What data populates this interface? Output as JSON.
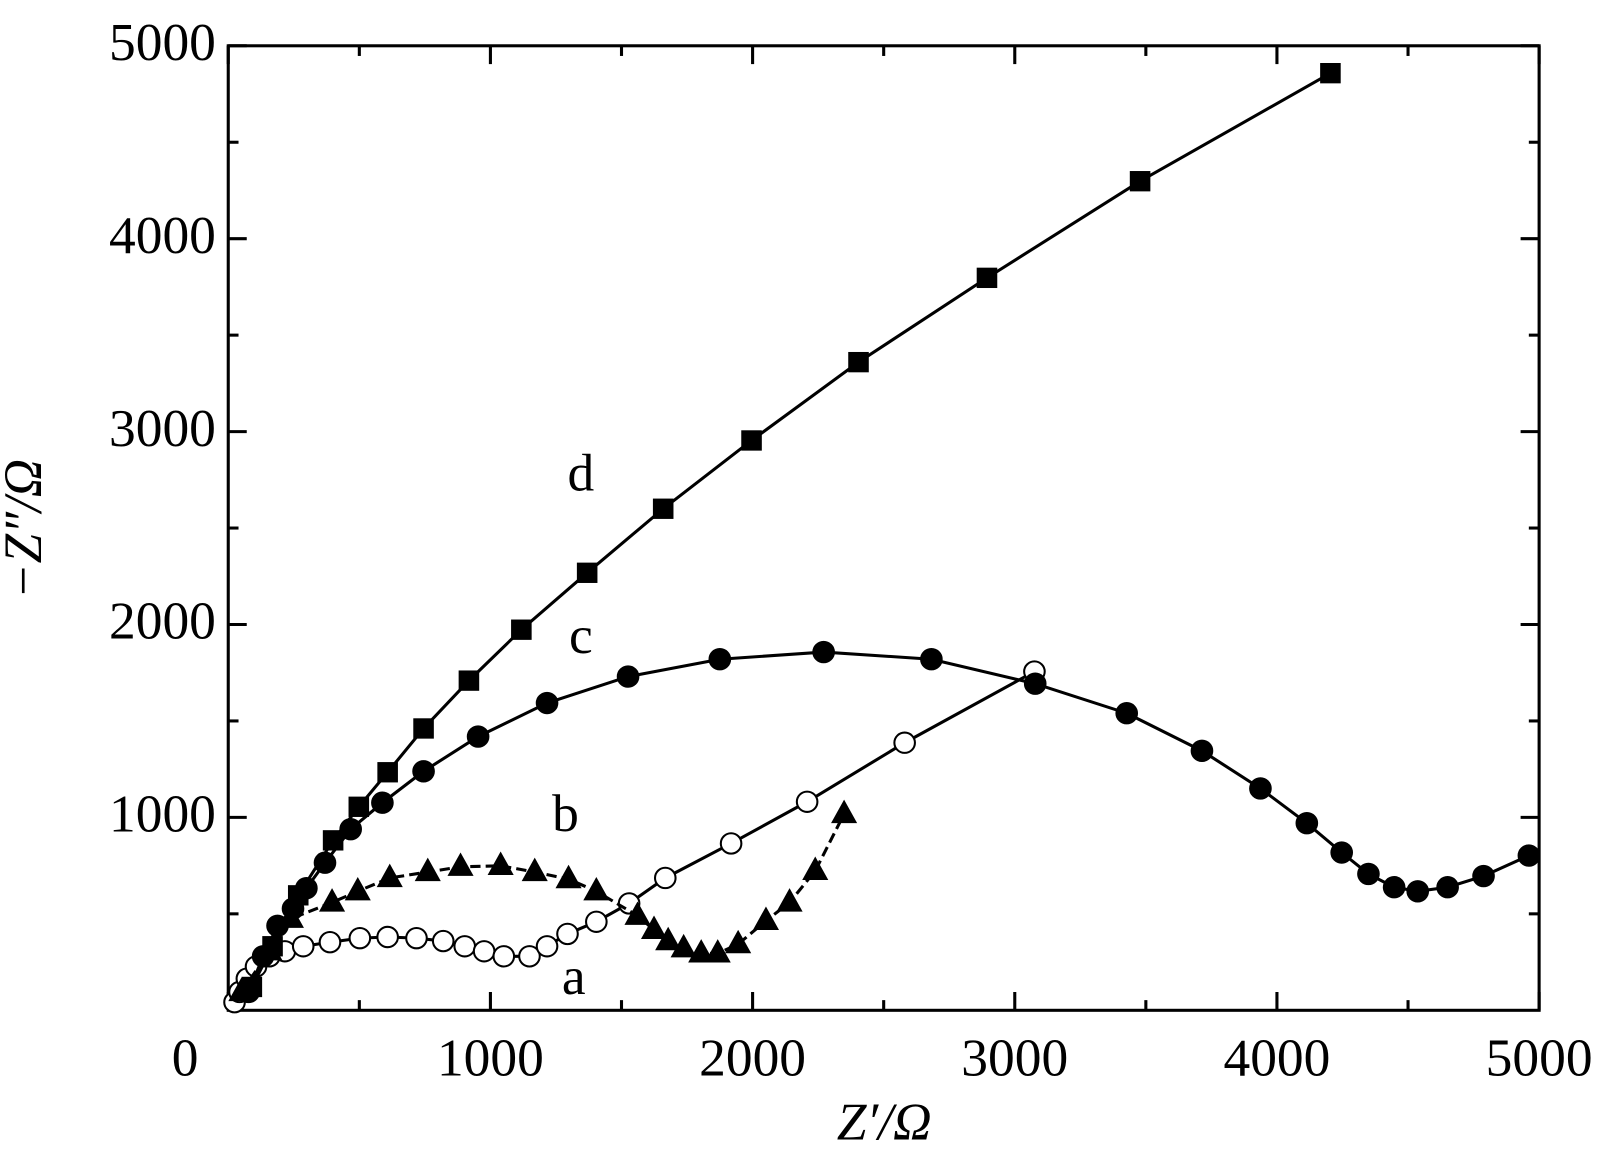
{
  "chart_data": {
    "type": "scatter",
    "x_label": "Z′/Ω",
    "y_label": "−Z″/Ω",
    "xlim": [
      0,
      5000
    ],
    "ylim": [
      0,
      5000
    ],
    "xticks": [
      0,
      1000,
      2000,
      3000,
      4000,
      5000
    ],
    "yticks": [
      1000,
      2000,
      3000,
      4000,
      5000
    ],
    "series": [
      {
        "name": "a",
        "color": "#000000",
        "marker": "circle",
        "marker_fill": "#ffffff",
        "linestyle": "solid",
        "x": [
          24,
          43,
          71,
          106,
          157,
          216,
          286,
          388,
          502,
          608,
          718,
          820,
          902,
          976,
          1051,
          1149,
          1216,
          1294,
          1404,
          1529,
          1667,
          1918,
          2208,
          2580,
          3075
        ],
        "values": [
          42,
          95,
          164,
          227,
          280,
          306,
          332,
          353,
          374,
          380,
          374,
          359,
          332,
          306,
          280,
          280,
          332,
          396,
          459,
          554,
          686,
          865,
          1081,
          1387,
          1756
        ]
      },
      {
        "name": "b",
        "color": "#000000",
        "marker": "triangle",
        "marker_fill": "#000000",
        "linestyle": "dashed",
        "x": [
          50,
          157,
          239,
          396,
          494,
          616,
          761,
          886,
          1039,
          1169,
          1298,
          1404,
          1561,
          1624,
          1678,
          1737,
          1804,
          1867,
          1945,
          2051,
          2141,
          2239,
          2349
        ],
        "values": [
          95,
          306,
          475,
          559,
          617,
          686,
          717,
          744,
          749,
          717,
          680,
          617,
          490,
          417,
          359,
          322,
          295,
          295,
          343,
          464,
          559,
          723,
          1018
        ]
      },
      {
        "name": "c",
        "color": "#000000",
        "marker": "circle",
        "marker_fill": "#000000",
        "linestyle": "solid",
        "x": [
          78,
          133,
          188,
          247,
          298,
          369,
          467,
          588,
          745,
          953,
          1216,
          1525,
          1875,
          2271,
          2682,
          3078,
          3427,
          3714,
          3937,
          4114,
          4247,
          4349,
          4447,
          4537,
          4651,
          4788,
          4961
        ],
        "values": [
          95,
          280,
          438,
          527,
          633,
          765,
          939,
          1076,
          1239,
          1419,
          1593,
          1730,
          1820,
          1857,
          1820,
          1693,
          1540,
          1345,
          1150,
          970,
          818,
          707,
          638,
          617,
          638,
          696,
          802
        ]
      },
      {
        "name": "d",
        "color": "#000000",
        "marker": "square",
        "marker_fill": "#000000",
        "linestyle": "solid",
        "x": [
          90,
          169,
          267,
          400,
          498,
          608,
          745,
          918,
          1118,
          1369,
          1659,
          1996,
          2404,
          2894,
          3478,
          4204
        ],
        "values": [
          121,
          332,
          596,
          881,
          1055,
          1234,
          1461,
          1709,
          1973,
          2268,
          2600,
          2954,
          3360,
          3797,
          4298,
          4858
        ]
      }
    ]
  }
}
